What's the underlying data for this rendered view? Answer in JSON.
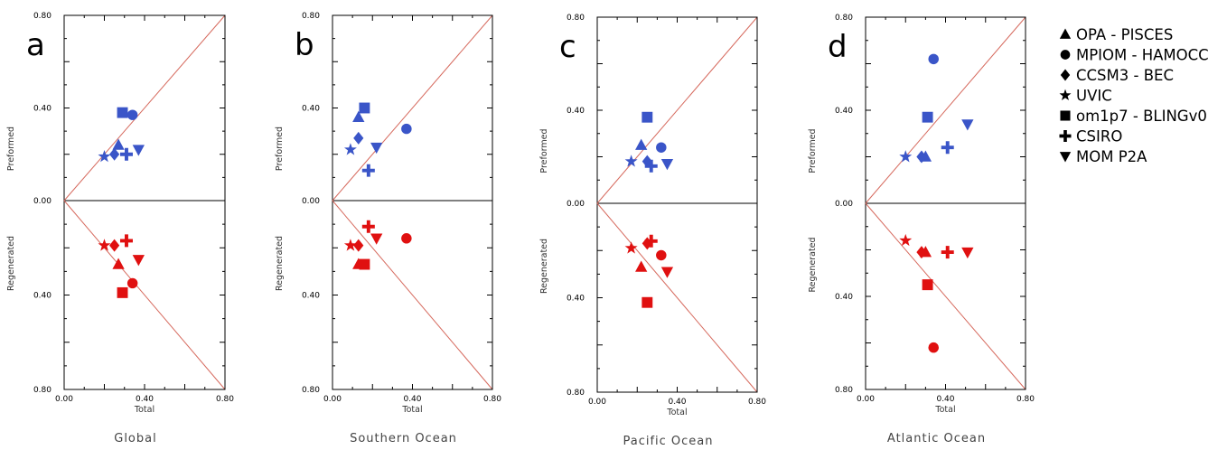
{
  "colors": {
    "preformed": "#3a55c8",
    "regenerated": "#e01010",
    "diagonal": "#d66a5e",
    "axis": "#000000"
  },
  "legend": [
    {
      "marker": "triangle-up",
      "label": "OPA - PISCES"
    },
    {
      "marker": "circle",
      "label": "MPIOM - HAMOCC"
    },
    {
      "marker": "diamond",
      "label": "CCSM3 - BEC"
    },
    {
      "marker": "star",
      "label": "UVIC"
    },
    {
      "marker": "square",
      "label": "om1p7 - BLINGv0"
    },
    {
      "marker": "plus",
      "label": "CSIRO"
    },
    {
      "marker": "triangle-down",
      "label": "MOM P2A"
    }
  ],
  "chart_data": [
    {
      "type": "scatter",
      "panel": "a",
      "caption": "Global",
      "xlabel": "Total",
      "ylabel_top": "Preformed",
      "ylabel_bottom": "Regenerated",
      "xlim": [
        0,
        0.8
      ],
      "ylim": [
        -0.8,
        0.8
      ],
      "x_ticks": [
        "0.00",
        "0.40",
        "0.80"
      ],
      "y_ticks_top": [
        "0.80",
        "0.40",
        "0.00"
      ],
      "y_ticks_bottom": [
        "0.40",
        "0.80"
      ],
      "series": [
        {
          "name": "OPA - PISCES",
          "preformed": [
            0.27,
            0.24
          ],
          "regenerated": [
            0.27,
            0.27
          ]
        },
        {
          "name": "MPIOM - HAMOCC",
          "preformed": [
            0.34,
            0.37
          ],
          "regenerated": [
            0.34,
            0.35
          ]
        },
        {
          "name": "CCSM3 - BEC",
          "preformed": [
            0.25,
            0.2
          ],
          "regenerated": [
            0.25,
            0.19
          ]
        },
        {
          "name": "UVIC",
          "preformed": [
            0.2,
            0.19
          ],
          "regenerated": [
            0.2,
            0.19
          ]
        },
        {
          "name": "om1p7 - BLINGv0",
          "preformed": [
            0.29,
            0.38
          ],
          "regenerated": [
            0.29,
            0.39
          ]
        },
        {
          "name": "CSIRO",
          "preformed": [
            0.31,
            0.2
          ],
          "regenerated": [
            0.31,
            0.17
          ]
        },
        {
          "name": "MOM P2A",
          "preformed": [
            0.37,
            0.22
          ],
          "regenerated": [
            0.37,
            0.25
          ]
        }
      ]
    },
    {
      "type": "scatter",
      "panel": "b",
      "caption": "Southern Ocean",
      "xlabel": "Total",
      "ylabel_top": "Preformed",
      "ylabel_bottom": "Regenerated",
      "xlim": [
        0,
        0.8
      ],
      "ylim": [
        -0.8,
        0.8
      ],
      "x_ticks": [
        "0.00",
        "0.40",
        "0.80"
      ],
      "y_ticks_top": [
        "0.80",
        "0.40",
        "0.00"
      ],
      "y_ticks_bottom": [
        "0.40",
        "0.80"
      ],
      "series": [
        {
          "name": "OPA - PISCES",
          "preformed": [
            0.13,
            0.36
          ],
          "regenerated": [
            0.13,
            0.27
          ]
        },
        {
          "name": "MPIOM - HAMOCC",
          "preformed": [
            0.37,
            0.31
          ],
          "regenerated": [
            0.37,
            0.16
          ]
        },
        {
          "name": "CCSM3 - BEC",
          "preformed": [
            0.13,
            0.27
          ],
          "regenerated": [
            0.13,
            0.19
          ]
        },
        {
          "name": "UVIC",
          "preformed": [
            0.09,
            0.22
          ],
          "regenerated": [
            0.09,
            0.19
          ]
        },
        {
          "name": "om1p7 - BLINGv0",
          "preformed": [
            0.16,
            0.4
          ],
          "regenerated": [
            0.16,
            0.27
          ]
        },
        {
          "name": "CSIRO",
          "preformed": [
            0.18,
            0.13
          ],
          "regenerated": [
            0.18,
            0.11
          ]
        },
        {
          "name": "MOM P2A",
          "preformed": [
            0.22,
            0.23
          ],
          "regenerated": [
            0.22,
            0.16
          ]
        }
      ]
    },
    {
      "type": "scatter",
      "panel": "c",
      "caption": "Pacific Ocean",
      "xlabel": "Total",
      "ylabel_top": "Preformed",
      "ylabel_bottom": "Regenerated",
      "xlim": [
        0,
        0.8
      ],
      "ylim": [
        -0.8,
        0.8
      ],
      "x_ticks": [
        "0.00",
        "0.40",
        "0.80"
      ],
      "y_ticks_top": [
        "0.80",
        "0.40",
        "0.00"
      ],
      "y_ticks_bottom": [
        "0.40",
        "0.80"
      ],
      "series": [
        {
          "name": "OPA - PISCES",
          "preformed": [
            0.22,
            0.25
          ],
          "regenerated": [
            0.22,
            0.27
          ]
        },
        {
          "name": "MPIOM - HAMOCC",
          "preformed": [
            0.32,
            0.24
          ],
          "regenerated": [
            0.32,
            0.22
          ]
        },
        {
          "name": "CCSM3 - BEC",
          "preformed": [
            0.25,
            0.18
          ],
          "regenerated": [
            0.25,
            0.17
          ]
        },
        {
          "name": "UVIC",
          "preformed": [
            0.17,
            0.18
          ],
          "regenerated": [
            0.17,
            0.19
          ]
        },
        {
          "name": "om1p7 - BLINGv0",
          "preformed": [
            0.25,
            0.37
          ],
          "regenerated": [
            0.25,
            0.42
          ]
        },
        {
          "name": "CSIRO",
          "preformed": [
            0.27,
            0.16
          ],
          "regenerated": [
            0.27,
            0.16
          ]
        },
        {
          "name": "MOM P2A",
          "preformed": [
            0.35,
            0.17
          ],
          "regenerated": [
            0.35,
            0.29
          ]
        }
      ]
    },
    {
      "type": "scatter",
      "panel": "d",
      "caption": "Atlantic Ocean",
      "xlabel": "Total",
      "ylabel_top": "Preformed",
      "ylabel_bottom": "Regenerated",
      "xlim": [
        0,
        0.8
      ],
      "ylim": [
        -0.8,
        0.8
      ],
      "x_ticks": [
        "0.00",
        "0.40",
        "0.80"
      ],
      "y_ticks_top": [
        "0.80",
        "0.40",
        "0.00"
      ],
      "y_ticks_bottom": [
        "0.40",
        "0.80"
      ],
      "series": [
        {
          "name": "OPA - PISCES",
          "preformed": [
            0.3,
            0.2
          ],
          "regenerated": [
            0.3,
            0.21
          ]
        },
        {
          "name": "MPIOM - HAMOCC",
          "preformed": [
            0.34,
            0.62
          ],
          "regenerated": [
            0.34,
            0.62
          ]
        },
        {
          "name": "CCSM3 - BEC",
          "preformed": [
            0.28,
            0.2
          ],
          "regenerated": [
            0.28,
            0.21
          ]
        },
        {
          "name": "UVIC",
          "preformed": [
            0.2,
            0.2
          ],
          "regenerated": [
            0.2,
            0.16
          ]
        },
        {
          "name": "om1p7 - BLINGv0",
          "preformed": [
            0.31,
            0.37
          ],
          "regenerated": [
            0.31,
            0.35
          ]
        },
        {
          "name": "CSIRO",
          "preformed": [
            0.41,
            0.24
          ],
          "regenerated": [
            0.41,
            0.21
          ]
        },
        {
          "name": "MOM P2A",
          "preformed": [
            0.51,
            0.34
          ],
          "regenerated": [
            0.51,
            0.21
          ]
        }
      ]
    }
  ]
}
